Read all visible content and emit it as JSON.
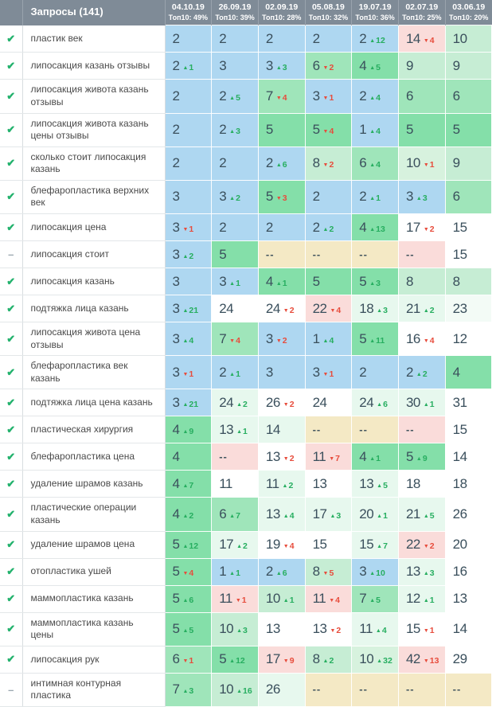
{
  "table": {
    "header": {
      "keywords_label": "Запросы (141)",
      "columns": [
        {
          "date": "04.10.19",
          "top10": "Топ10: 49%"
        },
        {
          "date": "26.09.19",
          "top10": "Топ10: 39%"
        },
        {
          "date": "02.09.19",
          "top10": "Топ10: 28%"
        },
        {
          "date": "05.08.19",
          "top10": "Топ10: 32%"
        },
        {
          "date": "19.07.19",
          "top10": "Топ10: 36%"
        },
        {
          "date": "02.07.19",
          "top10": "Топ10: 25%"
        },
        {
          "date": "03.06.19",
          "top10": "Топ10: 20%"
        }
      ]
    },
    "rows": [
      {
        "status": "check",
        "keyword": "пластик век",
        "cells": [
          {
            "v": "2",
            "d": null,
            "bg": "b"
          },
          {
            "v": "2",
            "d": null,
            "bg": "b"
          },
          {
            "v": "2",
            "d": null,
            "bg": "b"
          },
          {
            "v": "2",
            "d": null,
            "bg": "b"
          },
          {
            "v": "2",
            "d": 12,
            "bg": "b"
          },
          {
            "v": "14",
            "d": -4,
            "bg": "p"
          },
          {
            "v": "10",
            "d": null,
            "bg": "lg"
          }
        ]
      },
      {
        "status": "check",
        "keyword": "липосакция казань отзывы",
        "cells": [
          {
            "v": "2",
            "d": 1,
            "bg": "b"
          },
          {
            "v": "3",
            "d": null,
            "bg": "b"
          },
          {
            "v": "3",
            "d": 3,
            "bg": "b"
          },
          {
            "v": "6",
            "d": -2,
            "bg": "g2"
          },
          {
            "v": "4",
            "d": 5,
            "bg": "g"
          },
          {
            "v": "9",
            "d": null,
            "bg": "lg"
          },
          {
            "v": "9",
            "d": null,
            "bg": "lg"
          }
        ]
      },
      {
        "status": "check",
        "keyword": "липосакция живота казань отзывы",
        "cells": [
          {
            "v": "2",
            "d": null,
            "bg": "b"
          },
          {
            "v": "2",
            "d": 5,
            "bg": "b"
          },
          {
            "v": "7",
            "d": -4,
            "bg": "g2"
          },
          {
            "v": "3",
            "d": -1,
            "bg": "b"
          },
          {
            "v": "2",
            "d": 4,
            "bg": "b"
          },
          {
            "v": "6",
            "d": null,
            "bg": "g2"
          },
          {
            "v": "6",
            "d": null,
            "bg": "g2"
          }
        ]
      },
      {
        "status": "check",
        "keyword": "липосакция живота казань цены отзывы",
        "cells": [
          {
            "v": "2",
            "d": null,
            "bg": "b"
          },
          {
            "v": "2",
            "d": 3,
            "bg": "b"
          },
          {
            "v": "5",
            "d": null,
            "bg": "g"
          },
          {
            "v": "5",
            "d": -4,
            "bg": "g"
          },
          {
            "v": "1",
            "d": 4,
            "bg": "b"
          },
          {
            "v": "5",
            "d": null,
            "bg": "g"
          },
          {
            "v": "5",
            "d": null,
            "bg": "g"
          }
        ]
      },
      {
        "status": "check",
        "keyword": "сколько стоит липосакция казань",
        "cells": [
          {
            "v": "2",
            "d": null,
            "bg": "b"
          },
          {
            "v": "2",
            "d": null,
            "bg": "b"
          },
          {
            "v": "2",
            "d": 6,
            "bg": "b"
          },
          {
            "v": "8",
            "d": -2,
            "bg": "lg"
          },
          {
            "v": "6",
            "d": 4,
            "bg": "g2"
          },
          {
            "v": "10",
            "d": -1,
            "bg": "lg2"
          },
          {
            "v": "9",
            "d": null,
            "bg": "lg"
          }
        ]
      },
      {
        "status": "check",
        "keyword": "блефаропластика верхних век",
        "cells": [
          {
            "v": "3",
            "d": null,
            "bg": "b"
          },
          {
            "v": "3",
            "d": 2,
            "bg": "b"
          },
          {
            "v": "5",
            "d": -3,
            "bg": "g"
          },
          {
            "v": "2",
            "d": null,
            "bg": "b"
          },
          {
            "v": "2",
            "d": 1,
            "bg": "b"
          },
          {
            "v": "3",
            "d": 3,
            "bg": "b"
          },
          {
            "v": "6",
            "d": null,
            "bg": "g2"
          }
        ]
      },
      {
        "status": "check",
        "keyword": "липосакция цена",
        "cells": [
          {
            "v": "3",
            "d": -1,
            "bg": "b"
          },
          {
            "v": "2",
            "d": null,
            "bg": "b"
          },
          {
            "v": "2",
            "d": null,
            "bg": "b"
          },
          {
            "v": "2",
            "d": 2,
            "bg": "b"
          },
          {
            "v": "4",
            "d": 13,
            "bg": "g"
          },
          {
            "v": "17",
            "d": -2,
            "bg": "w"
          },
          {
            "v": "15",
            "d": null,
            "bg": "w"
          }
        ]
      },
      {
        "status": "dash",
        "keyword": "липосакция стоит",
        "cells": [
          {
            "v": "3",
            "d": 2,
            "bg": "b"
          },
          {
            "v": "5",
            "d": null,
            "bg": "g"
          },
          {
            "v": "--",
            "d": null,
            "bg": "t"
          },
          {
            "v": "--",
            "d": null,
            "bg": "t"
          },
          {
            "v": "--",
            "d": null,
            "bg": "t"
          },
          {
            "v": "--",
            "d": null,
            "bg": "p"
          },
          {
            "v": "15",
            "d": null,
            "bg": "w"
          }
        ]
      },
      {
        "status": "check",
        "keyword": "липосакция казань",
        "cells": [
          {
            "v": "3",
            "d": null,
            "bg": "b"
          },
          {
            "v": "3",
            "d": 1,
            "bg": "b"
          },
          {
            "v": "4",
            "d": 1,
            "bg": "g"
          },
          {
            "v": "5",
            "d": null,
            "bg": "g"
          },
          {
            "v": "5",
            "d": 3,
            "bg": "g"
          },
          {
            "v": "8",
            "d": null,
            "bg": "lg"
          },
          {
            "v": "8",
            "d": null,
            "bg": "lg"
          }
        ]
      },
      {
        "status": "check",
        "keyword": "подтяжка лица казань",
        "cells": [
          {
            "v": "3",
            "d": 21,
            "bg": "b"
          },
          {
            "v": "24",
            "d": null,
            "bg": "w"
          },
          {
            "v": "24",
            "d": -2,
            "bg": "w"
          },
          {
            "v": "22",
            "d": -4,
            "bg": "p"
          },
          {
            "v": "18",
            "d": 3,
            "bg": "vlg"
          },
          {
            "v": "21",
            "d": 2,
            "bg": "vlg"
          },
          {
            "v": "23",
            "d": null,
            "bg": "w2"
          }
        ]
      },
      {
        "status": "check",
        "keyword": "липосакция живота цена отзывы",
        "cells": [
          {
            "v": "3",
            "d": 4,
            "bg": "b"
          },
          {
            "v": "7",
            "d": -4,
            "bg": "g2"
          },
          {
            "v": "3",
            "d": -2,
            "bg": "b"
          },
          {
            "v": "1",
            "d": 4,
            "bg": "b"
          },
          {
            "v": "5",
            "d": 11,
            "bg": "g"
          },
          {
            "v": "16",
            "d": -4,
            "bg": "w"
          },
          {
            "v": "12",
            "d": null,
            "bg": "w"
          }
        ]
      },
      {
        "status": "check",
        "keyword": "блефаропластика век казань",
        "cells": [
          {
            "v": "3",
            "d": -1,
            "bg": "b"
          },
          {
            "v": "2",
            "d": 1,
            "bg": "b"
          },
          {
            "v": "3",
            "d": null,
            "bg": "b"
          },
          {
            "v": "3",
            "d": -1,
            "bg": "b"
          },
          {
            "v": "2",
            "d": null,
            "bg": "b"
          },
          {
            "v": "2",
            "d": 2,
            "bg": "b"
          },
          {
            "v": "4",
            "d": null,
            "bg": "g"
          }
        ]
      },
      {
        "status": "check",
        "keyword": "подтяжка лица цена казань",
        "cells": [
          {
            "v": "3",
            "d": 21,
            "bg": "b"
          },
          {
            "v": "24",
            "d": 2,
            "bg": "vlg"
          },
          {
            "v": "26",
            "d": -2,
            "bg": "w"
          },
          {
            "v": "24",
            "d": null,
            "bg": "w"
          },
          {
            "v": "24",
            "d": 6,
            "bg": "vlg"
          },
          {
            "v": "30",
            "d": 1,
            "bg": "vlg"
          },
          {
            "v": "31",
            "d": null,
            "bg": "w"
          }
        ]
      },
      {
        "status": "check",
        "keyword": "пластическая хирургия",
        "cells": [
          {
            "v": "4",
            "d": 9,
            "bg": "g"
          },
          {
            "v": "13",
            "d": 1,
            "bg": "vlg"
          },
          {
            "v": "14",
            "d": null,
            "bg": "vlg"
          },
          {
            "v": "--",
            "d": null,
            "bg": "t"
          },
          {
            "v": "--",
            "d": null,
            "bg": "t"
          },
          {
            "v": "--",
            "d": null,
            "bg": "p"
          },
          {
            "v": "15",
            "d": null,
            "bg": "w"
          }
        ]
      },
      {
        "status": "check",
        "keyword": "блефаропластика цена",
        "cells": [
          {
            "v": "4",
            "d": null,
            "bg": "g"
          },
          {
            "v": "--",
            "d": null,
            "bg": "p"
          },
          {
            "v": "13",
            "d": -2,
            "bg": "w"
          },
          {
            "v": "11",
            "d": -7,
            "bg": "p"
          },
          {
            "v": "4",
            "d": 1,
            "bg": "g"
          },
          {
            "v": "5",
            "d": 9,
            "bg": "g"
          },
          {
            "v": "14",
            "d": null,
            "bg": "w"
          }
        ]
      },
      {
        "status": "check",
        "keyword": "удаление шрамов казань",
        "cells": [
          {
            "v": "4",
            "d": 7,
            "bg": "g"
          },
          {
            "v": "11",
            "d": null,
            "bg": "w"
          },
          {
            "v": "11",
            "d": 2,
            "bg": "vlg"
          },
          {
            "v": "13",
            "d": null,
            "bg": "w"
          },
          {
            "v": "13",
            "d": 5,
            "bg": "vlg"
          },
          {
            "v": "18",
            "d": null,
            "bg": "w"
          },
          {
            "v": "18",
            "d": null,
            "bg": "w"
          }
        ]
      },
      {
        "status": "check",
        "keyword": "пластические операции казань",
        "cells": [
          {
            "v": "4",
            "d": 2,
            "bg": "g"
          },
          {
            "v": "6",
            "d": 7,
            "bg": "g2"
          },
          {
            "v": "13",
            "d": 4,
            "bg": "vlg"
          },
          {
            "v": "17",
            "d": 3,
            "bg": "vlg"
          },
          {
            "v": "20",
            "d": 1,
            "bg": "vlg"
          },
          {
            "v": "21",
            "d": 5,
            "bg": "vlg"
          },
          {
            "v": "26",
            "d": null,
            "bg": "w"
          }
        ]
      },
      {
        "status": "check",
        "keyword": "удаление шрамов цена",
        "cells": [
          {
            "v": "5",
            "d": 12,
            "bg": "g"
          },
          {
            "v": "17",
            "d": 2,
            "bg": "vlg"
          },
          {
            "v": "19",
            "d": -4,
            "bg": "w"
          },
          {
            "v": "15",
            "d": null,
            "bg": "w"
          },
          {
            "v": "15",
            "d": 7,
            "bg": "vlg"
          },
          {
            "v": "22",
            "d": -2,
            "bg": "p"
          },
          {
            "v": "20",
            "d": null,
            "bg": "w"
          }
        ]
      },
      {
        "status": "check",
        "keyword": "отопластика ушей",
        "cells": [
          {
            "v": "5",
            "d": -4,
            "bg": "g"
          },
          {
            "v": "1",
            "d": 1,
            "bg": "b"
          },
          {
            "v": "2",
            "d": 6,
            "bg": "b"
          },
          {
            "v": "8",
            "d": -5,
            "bg": "lg"
          },
          {
            "v": "3",
            "d": 10,
            "bg": "b"
          },
          {
            "v": "13",
            "d": 3,
            "bg": "vlg"
          },
          {
            "v": "16",
            "d": null,
            "bg": "w"
          }
        ]
      },
      {
        "status": "check",
        "keyword": "маммопластика казань",
        "cells": [
          {
            "v": "5",
            "d": 6,
            "bg": "g"
          },
          {
            "v": "11",
            "d": -1,
            "bg": "p"
          },
          {
            "v": "10",
            "d": 1,
            "bg": "lg"
          },
          {
            "v": "11",
            "d": -4,
            "bg": "p"
          },
          {
            "v": "7",
            "d": 5,
            "bg": "g2"
          },
          {
            "v": "12",
            "d": 1,
            "bg": "vlg"
          },
          {
            "v": "13",
            "d": null,
            "bg": "w"
          }
        ]
      },
      {
        "status": "check",
        "keyword": "маммопластика казань цены",
        "cells": [
          {
            "v": "5",
            "d": 5,
            "bg": "g"
          },
          {
            "v": "10",
            "d": 3,
            "bg": "lg"
          },
          {
            "v": "13",
            "d": null,
            "bg": "w"
          },
          {
            "v": "13",
            "d": -2,
            "bg": "w"
          },
          {
            "v": "11",
            "d": 4,
            "bg": "vlg"
          },
          {
            "v": "15",
            "d": -1,
            "bg": "w"
          },
          {
            "v": "14",
            "d": null,
            "bg": "w"
          }
        ]
      },
      {
        "status": "check",
        "keyword": "липосакция рук",
        "cells": [
          {
            "v": "6",
            "d": -1,
            "bg": "g2"
          },
          {
            "v": "5",
            "d": 12,
            "bg": "g"
          },
          {
            "v": "17",
            "d": -9,
            "bg": "p"
          },
          {
            "v": "8",
            "d": 2,
            "bg": "lg"
          },
          {
            "v": "10",
            "d": 32,
            "bg": "lg2"
          },
          {
            "v": "42",
            "d": -13,
            "bg": "p"
          },
          {
            "v": "29",
            "d": null,
            "bg": "w"
          }
        ]
      },
      {
        "status": "dash",
        "keyword": "интимная контурная пластика",
        "cells": [
          {
            "v": "7",
            "d": 3,
            "bg": "g2"
          },
          {
            "v": "10",
            "d": 16,
            "bg": "lg"
          },
          {
            "v": "26",
            "d": null,
            "bg": "vlg"
          },
          {
            "v": "--",
            "d": null,
            "bg": "t"
          },
          {
            "v": "--",
            "d": null,
            "bg": "t"
          },
          {
            "v": "--",
            "d": null,
            "bg": "t"
          },
          {
            "v": "--",
            "d": null,
            "bg": "t"
          }
        ]
      }
    ]
  },
  "colors": {
    "b": "#aed7f1",
    "g": "#84dfa9",
    "g2": "#9fe5ba",
    "lg": "#c6edd4",
    "lg2": "#d7f2de",
    "vlg": "#e7f8ee",
    "w2": "#f3fbf6",
    "w": "#ffffff",
    "p": "#fadcda",
    "t": "#f4e9c5",
    "delta_up": "#27ae60",
    "delta_down": "#e74c3c",
    "header_bg": "#7f8b97",
    "check_green": "#23b26d",
    "dash_gray": "#9aa7b0"
  },
  "icons": {
    "check": "✔",
    "dash": "–",
    "arrow_up": "▲",
    "arrow_down": "▼"
  }
}
